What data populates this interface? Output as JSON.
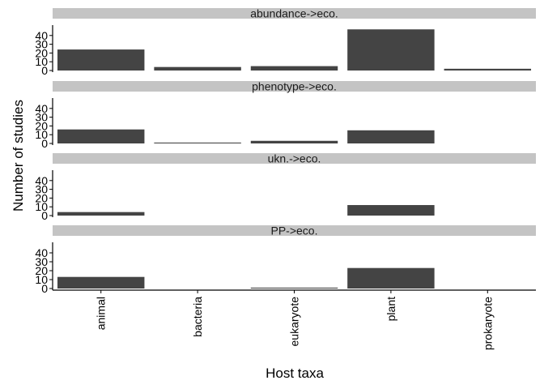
{
  "chart_data": {
    "type": "bar",
    "xlabel": "Host taxa",
    "ylabel": "Number of studies",
    "categories": [
      "animal",
      "bacteria",
      "eukaryote",
      "plant",
      "prokaryote"
    ],
    "ylim": [
      0,
      50
    ],
    "yticks": [
      0,
      10,
      20,
      30,
      40
    ],
    "grid": false,
    "bar_color": "#444444",
    "strip_color": "#c4c4c4",
    "panels": [
      {
        "title": "abundance->eco.",
        "values": [
          24,
          4,
          5,
          47,
          2
        ]
      },
      {
        "title": "phenotype->eco.",
        "values": [
          16,
          1,
          3,
          15,
          0
        ]
      },
      {
        "title": "ukn.->eco.",
        "values": [
          4,
          0,
          0,
          12,
          0
        ]
      },
      {
        "title": "PP->eco.",
        "values": [
          13,
          0,
          1,
          23,
          0
        ]
      }
    ]
  }
}
